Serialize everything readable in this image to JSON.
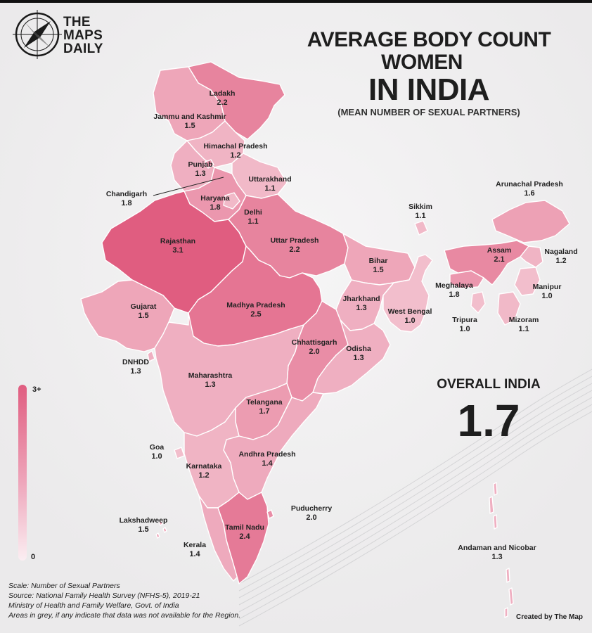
{
  "brand": {
    "line1": "THE",
    "line2": "MAPS",
    "line3": "DAILY"
  },
  "title": {
    "line1": "AVERAGE BODY COUNT",
    "line2": "WOMEN",
    "line3": "IN INDIA",
    "subtitle": "(MEAN NUMBER OF SEXUAL PARTNERS)"
  },
  "overall": {
    "label": "OVERALL INDIA",
    "value": "1.7"
  },
  "legend": {
    "max_label": "3+",
    "min_label": "0",
    "scale": {
      "min": 0,
      "max": 3
    }
  },
  "colors": {
    "low": "#fbeef2",
    "high": "#e05d80",
    "border": "#ffffff"
  },
  "regions": [
    {
      "id": "ladakh",
      "name": "Ladakh",
      "value": "2.2"
    },
    {
      "id": "jk",
      "name": "Jammu and Kashmir",
      "value": "1.5"
    },
    {
      "id": "hp",
      "name": "Himachal Pradesh",
      "value": "1.2"
    },
    {
      "id": "punjab",
      "name": "Punjab",
      "value": "1.3"
    },
    {
      "id": "uk",
      "name": "Uttarakhand",
      "value": "1.1"
    },
    {
      "id": "chandigarh",
      "name": "Chandigarh",
      "value": "1.8"
    },
    {
      "id": "haryana",
      "name": "Haryana",
      "value": "1.8"
    },
    {
      "id": "delhi",
      "name": "Delhi",
      "value": "1.1"
    },
    {
      "id": "rajasthan",
      "name": "Rajasthan",
      "value": "3.1"
    },
    {
      "id": "up",
      "name": "Uttar Pradesh",
      "value": "2.2"
    },
    {
      "id": "bihar",
      "name": "Bihar",
      "value": "1.5"
    },
    {
      "id": "sikkim",
      "name": "Sikkim",
      "value": "1.1"
    },
    {
      "id": "arunachal",
      "name": "Arunachal Pradesh",
      "value": "1.6"
    },
    {
      "id": "assam",
      "name": "Assam",
      "value": "2.1"
    },
    {
      "id": "nagaland",
      "name": "Nagaland",
      "value": "1.2"
    },
    {
      "id": "meghalaya",
      "name": "Meghalaya",
      "value": "1.8"
    },
    {
      "id": "manipur",
      "name": "Manipur",
      "value": "1.0"
    },
    {
      "id": "gujarat",
      "name": "Gujarat",
      "value": "1.5"
    },
    {
      "id": "mp",
      "name": "Madhya Pradesh",
      "value": "2.5"
    },
    {
      "id": "jharkhand",
      "name": "Jharkhand",
      "value": "1.3"
    },
    {
      "id": "wb",
      "name": "West Bengal",
      "value": "1.0"
    },
    {
      "id": "tripura",
      "name": "Tripura",
      "value": "1.0"
    },
    {
      "id": "mizoram",
      "name": "Mizoram",
      "value": "1.1"
    },
    {
      "id": "chhattisgarh",
      "name": "Chhattisgarh",
      "value": "2.0"
    },
    {
      "id": "odisha",
      "name": "Odisha",
      "value": "1.3"
    },
    {
      "id": "dnhdd",
      "name": "DNHDD",
      "value": "1.3"
    },
    {
      "id": "maharashtra",
      "name": "Maharashtra",
      "value": "1.3"
    },
    {
      "id": "telangana",
      "name": "Telangana",
      "value": "1.7"
    },
    {
      "id": "goa",
      "name": "Goa",
      "value": "1.0"
    },
    {
      "id": "ap",
      "name": "Andhra Pradesh",
      "value": "1.4"
    },
    {
      "id": "karnataka",
      "name": "Karnataka",
      "value": "1.2"
    },
    {
      "id": "puducherry",
      "name": "Puducherry",
      "value": "2.0"
    },
    {
      "id": "lakshadweep",
      "name": "Lakshadweep",
      "value": "1.5"
    },
    {
      "id": "tn",
      "name": "Tamil Nadu",
      "value": "2.4"
    },
    {
      "id": "kerala",
      "name": "Kerala",
      "value": "1.4"
    },
    {
      "id": "andaman",
      "name": "Andaman and Nicobar",
      "value": "1.3"
    }
  ],
  "footer": {
    "line1": "Scale: Number of Sexual Partners",
    "line2": "Source: National Family Health Survey (NFHS-5), 2019-21",
    "line3": "Ministry of Health and Family Welfare, Govt. of India",
    "line4": "Areas in grey, if any indicate that data was not available for the Region."
  },
  "credit": "Created by The Map"
}
